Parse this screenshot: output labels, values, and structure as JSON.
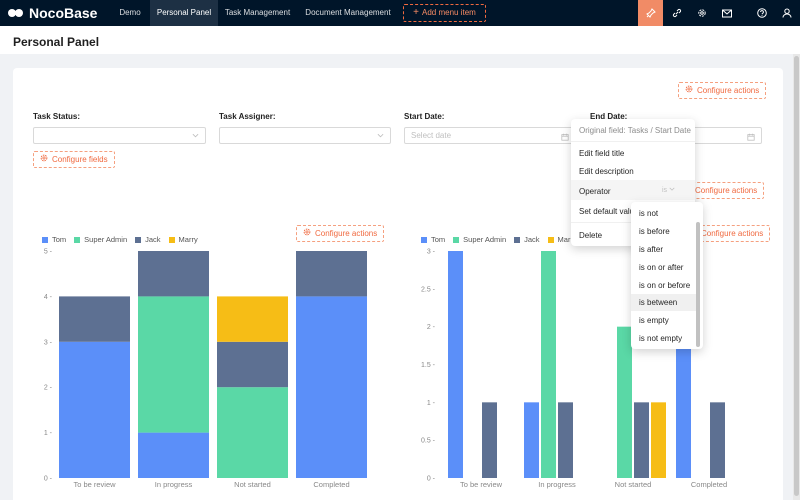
{
  "app": {
    "name": "NocoBase"
  },
  "nav": {
    "items": [
      "Demo",
      "Personal Panel",
      "Task Management",
      "Document Management"
    ],
    "add_menu_label": "Add menu item"
  },
  "toolbar_icons": [
    "pin-icon",
    "link-icon",
    "gear-icon",
    "mail-icon",
    "help-icon",
    "user-icon"
  ],
  "page": {
    "title": "Personal Panel"
  },
  "filters": {
    "configure_actions": "Configure actions",
    "configure_fields": "Configure fields",
    "task_status_label": "Task Status",
    "task_assigner_label": "Task Assigner",
    "start_date_label": "Start Date",
    "start_date_placeholder": "Select date",
    "end_date_label": "End Date"
  },
  "field_menu": {
    "original_field": "Original field: Tasks / Start Date",
    "items": [
      "Edit field title",
      "Edit description",
      "Operator",
      "Set default value",
      "Delete"
    ],
    "set_default_partial": "Set default valu",
    "operator_value": "is",
    "operator_options": [
      "is not",
      "is before",
      "is after",
      "is on or after",
      "is on or before",
      "is between",
      "is empty",
      "is not empty"
    ],
    "selected_operator": "is between"
  },
  "colors": {
    "Tom": "#5b8ff9",
    "Super Admin": "#5ad8a6",
    "Jack": "#5d7092",
    "Marry": "#f6bd16",
    "accent": "#f0693f"
  },
  "charts": [
    {
      "configure_actions": "Configure actions",
      "chart_data": {
        "type": "bar",
        "stacked": true,
        "categories": [
          "To be review",
          "In progress",
          "Not started",
          "Completed"
        ],
        "series": [
          {
            "name": "Tom",
            "values": [
              3,
              1,
              0,
              4
            ]
          },
          {
            "name": "Super Admin",
            "values": [
              0,
              3,
              2,
              0
            ]
          },
          {
            "name": "Jack",
            "values": [
              1,
              1,
              1,
              1
            ]
          },
          {
            "name": "Marry",
            "values": [
              0,
              0,
              1,
              0
            ]
          }
        ],
        "ylim": [
          0,
          5
        ],
        "yticks": [
          0,
          1,
          2,
          3,
          4,
          5
        ],
        "legend": "top-left"
      }
    },
    {
      "configure_actions": "Configure actions",
      "chart_data": {
        "type": "bar",
        "stacked": false,
        "categories": [
          "To be review",
          "In progress",
          "Not started",
          "Completed"
        ],
        "series": [
          {
            "name": "Tom",
            "values": [
              3,
              1,
              0,
              2
            ]
          },
          {
            "name": "Super Admin",
            "values": [
              0,
              3,
              2,
              0
            ]
          },
          {
            "name": "Jack",
            "values": [
              1,
              1,
              1,
              1
            ]
          },
          {
            "name": "Marry",
            "values": [
              0,
              0,
              1,
              0
            ]
          }
        ],
        "ylim": [
          0,
          3
        ],
        "yticks": [
          0,
          0.5,
          1,
          1.5,
          2,
          2.5,
          3
        ],
        "legend": "top-left"
      }
    }
  ]
}
